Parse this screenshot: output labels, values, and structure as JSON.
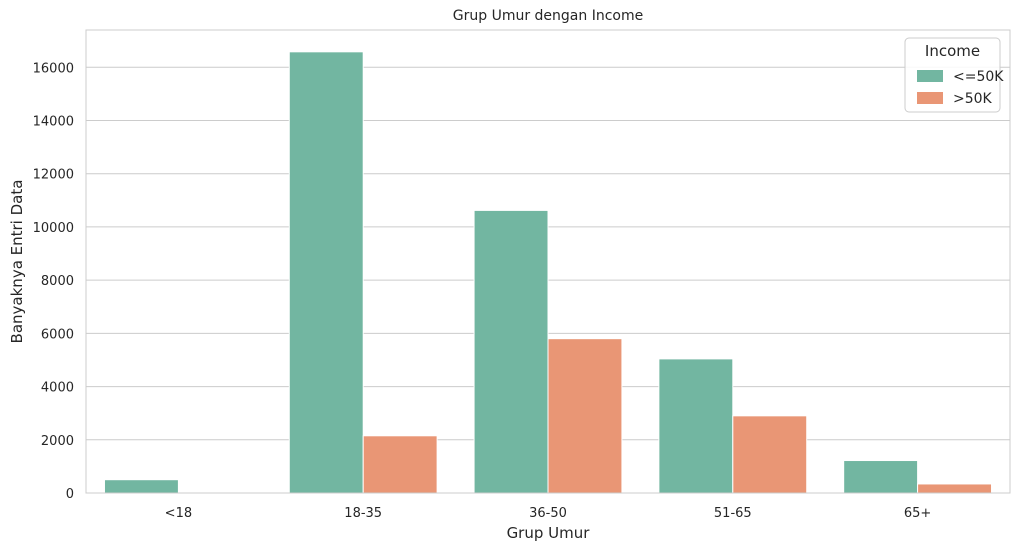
{
  "chart_data": {
    "type": "bar",
    "title": "Grup Umur dengan Income",
    "xlabel": "Grup Umur",
    "ylabel": "Banyaknya Entri Data",
    "categories": [
      "<18",
      "18-35",
      "36-50",
      "51-65",
      "65+"
    ],
    "series": [
      {
        "name": "<=50K",
        "color": "#72b6a1",
        "values": [
          500,
          16580,
          10620,
          5040,
          1220
        ]
      },
      {
        "name": ">50K",
        "color": "#e99675",
        "values": [
          5,
          2150,
          5800,
          2900,
          340
        ]
      }
    ],
    "ylim": [
      0,
      17400
    ],
    "yticks": [
      0,
      2000,
      4000,
      6000,
      8000,
      10000,
      12000,
      14000,
      16000
    ],
    "grid": true,
    "legend": {
      "title": "Income",
      "placement": "top-right"
    }
  }
}
